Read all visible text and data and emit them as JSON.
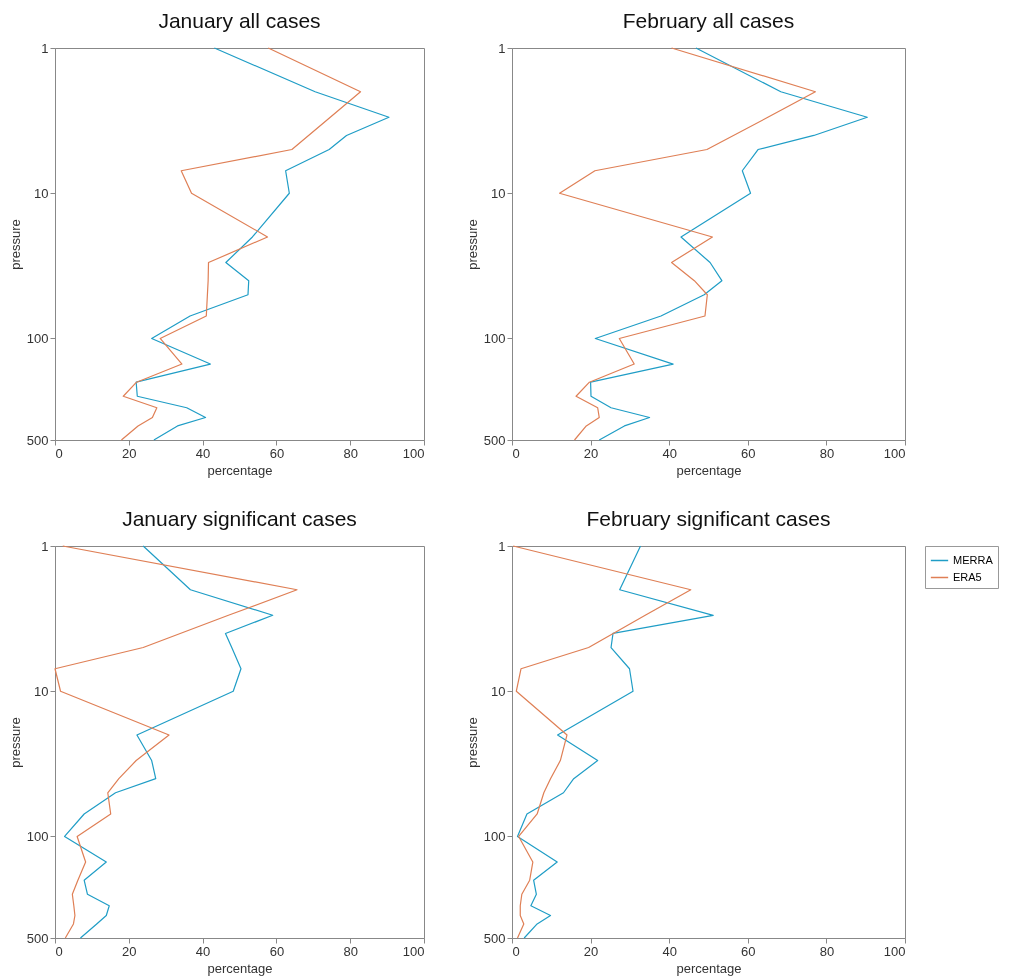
{
  "chart_data": [
    {
      "type": "line",
      "title": "January all cases",
      "xlabel": "percentage",
      "ylabel": "pressure",
      "log": "y",
      "xlim": [
        0,
        100
      ],
      "xticks": [
        0,
        20,
        40,
        60,
        80,
        100
      ],
      "ylim": [
        500,
        1
      ],
      "yticks": [
        1,
        10,
        100,
        500
      ],
      "legend": false,
      "series": [
        {
          "color": "#1f9dc6",
          "x": [
            43.2,
            70.5,
            90.5,
            79,
            74.3,
            62.5,
            63.5,
            53.5,
            46.3,
            52.5,
            52.3,
            36.6,
            26.2,
            42.1,
            22,
            22.3,
            35.7,
            40.8,
            33.2,
            26.8
          ],
          "values": [
            1,
            2,
            3,
            4,
            5,
            7,
            10,
            20,
            30,
            40,
            50,
            70,
            100,
            150,
            200,
            250,
            300,
            350,
            400,
            500
          ]
        },
        {
          "color": "#df7f55",
          "x": [
            57.8,
            82.8,
            74.6,
            64.2,
            34.2,
            37,
            57.6,
            41.6,
            41.5,
            41.3,
            41,
            28.5,
            34.4,
            22.1,
            18.5,
            27.6,
            26.4,
            22.5,
            18
          ],
          "values": [
            1,
            2,
            3,
            5,
            7,
            10,
            20,
            30,
            40,
            50,
            70,
            100,
            150,
            200,
            250,
            300,
            350,
            400,
            500
          ]
        }
      ]
    },
    {
      "type": "line",
      "title": "February all cases",
      "xlabel": "percentage",
      "ylabel": "pressure",
      "log": "y",
      "xlim": [
        0,
        100
      ],
      "xticks": [
        0,
        20,
        40,
        60,
        80,
        100
      ],
      "ylim": [
        500,
        1
      ],
      "yticks": [
        1,
        10,
        100,
        500
      ],
      "legend": false,
      "series": [
        {
          "color": "#1f9dc6",
          "x": [
            46.8,
            68.4,
            90.4,
            76.8,
            62.6,
            58.6,
            60.7,
            43,
            50.4,
            53.4,
            48.9,
            37.9,
            21.2,
            41,
            20,
            20.1,
            25.2,
            35,
            28.6,
            22.2
          ],
          "values": [
            1,
            2,
            3,
            4,
            5,
            7,
            10,
            20,
            30,
            40,
            50,
            70,
            100,
            150,
            200,
            250,
            300,
            350,
            400,
            500
          ]
        },
        {
          "color": "#df7f55",
          "x": [
            40.6,
            77.2,
            65.1,
            49.6,
            21.1,
            12.1,
            51,
            40.6,
            46.4,
            49.7,
            49.1,
            27.3,
            31.1,
            19.7,
            16.3,
            21.8,
            22.2,
            18.9,
            15.9
          ],
          "values": [
            1,
            2,
            3,
            5,
            7,
            10,
            20,
            30,
            40,
            50,
            70,
            100,
            150,
            200,
            250,
            300,
            350,
            400,
            500
          ]
        }
      ]
    },
    {
      "type": "line",
      "title": "January significant cases",
      "xlabel": "percentage",
      "ylabel": "pressure",
      "log": "y",
      "xlim": [
        0,
        100
      ],
      "xticks": [
        0,
        20,
        40,
        60,
        80,
        100
      ],
      "ylim": [
        500,
        1
      ],
      "yticks": [
        1,
        10,
        100,
        500
      ],
      "legend": false,
      "series": [
        {
          "color": "#1f9dc6",
          "x": [
            23.9,
            36.7,
            59,
            46.2,
            47.9,
            50.4,
            48.3,
            22.2,
            26.2,
            27.3,
            16.4,
            7.9,
            2.6,
            13.9,
            7.9,
            8.8,
            14.7,
            13.9,
            11.3,
            6.9
          ],
          "values": [
            1,
            2,
            3,
            4,
            5,
            7,
            10,
            20,
            30,
            40,
            50,
            70,
            100,
            150,
            200,
            250,
            300,
            350,
            400,
            500
          ]
        },
        {
          "color": "#df7f55",
          "x": [
            2.1,
            65.6,
            47,
            23.9,
            0,
            1.5,
            30.9,
            22,
            17.3,
            14.3,
            15.1,
            6,
            8.3,
            6.2,
            4.7,
            5.1,
            5.4,
            5,
            2.8
          ],
          "values": [
            1,
            2,
            3,
            5,
            7,
            10,
            20,
            30,
            40,
            50,
            70,
            100,
            150,
            200,
            250,
            300,
            350,
            400,
            500
          ]
        }
      ]
    },
    {
      "type": "line",
      "title": "February significant cases",
      "xlabel": "percentage",
      "ylabel": "pressure",
      "log": "y",
      "xlim": [
        0,
        100
      ],
      "xticks": [
        0,
        20,
        40,
        60,
        80,
        100
      ],
      "ylim": [
        500,
        1
      ],
      "yticks": [
        1,
        10,
        100,
        500
      ],
      "legend": "top right",
      "series": [
        {
          "name": "MERRA",
          "color": "#1f9dc6",
          "x": [
            32.7,
            27.4,
            51.2,
            25.7,
            25.2,
            29.9,
            30.8,
            11.6,
            21.8,
            15.7,
            13.1,
            3.8,
            1.4,
            11.5,
            5.5,
            6.2,
            4.8,
            9.8,
            6.4,
            3.1
          ],
          "values": [
            1,
            2,
            3,
            4,
            5,
            7,
            10,
            20,
            30,
            40,
            50,
            70,
            100,
            150,
            200,
            250,
            300,
            350,
            400,
            500
          ]
        },
        {
          "name": "ERA5",
          "color": "#df7f55",
          "x": [
            0.3,
            45.5,
            33.9,
            19.5,
            2.3,
            1.1,
            14,
            12.3,
            9.8,
            8.1,
            6.4,
            1.7,
            5.3,
            4.5,
            2.5,
            2.1,
            2.1,
            3,
            1.4
          ],
          "values": [
            1,
            2,
            3,
            5,
            7,
            10,
            20,
            30,
            40,
            50,
            70,
            100,
            150,
            200,
            250,
            300,
            350,
            400,
            500
          ]
        }
      ]
    }
  ]
}
